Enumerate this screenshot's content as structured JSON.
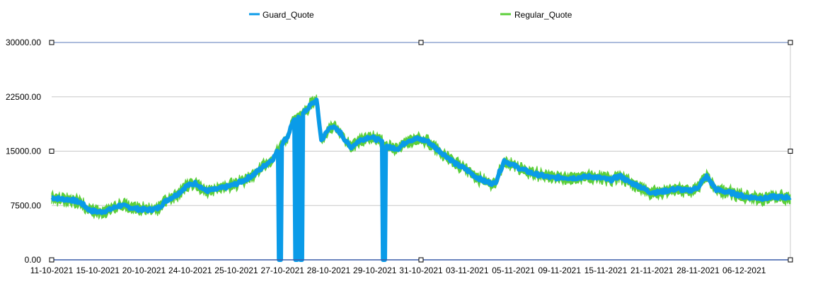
{
  "chart_data": {
    "type": "area",
    "title": "",
    "xlabel": "",
    "ylabel": "",
    "ylim": [
      0,
      30000
    ],
    "y_ticks": [
      "0.00",
      "7500.00",
      "15000.00",
      "22500.00",
      "30000.00"
    ],
    "y_tick_values": [
      0,
      7500,
      15000,
      22500,
      30000
    ],
    "x_tick_labels": [
      "11-10-2021",
      "15-10-2021",
      "20-10-2021",
      "24-10-2021",
      "25-10-2021",
      "27-10-2021",
      "28-10-2021",
      "29-10-2021",
      "31-10-2021",
      "03-11-2021",
      "05-11-2021",
      "09-11-2021",
      "15-11-2021",
      "21-11-2021",
      "28-11-2021",
      "06-12-2021"
    ],
    "grid": true,
    "legend_position": "top",
    "n_points": 360,
    "series": [
      {
        "name": "Guard_Quote",
        "color": "#0a9be8",
        "style": "thick-line",
        "anchors": [
          [
            0,
            8600
          ],
          [
            10,
            8400
          ],
          [
            20,
            8300
          ],
          [
            30,
            7900
          ],
          [
            40,
            6800
          ],
          [
            50,
            6600
          ],
          [
            60,
            6900
          ],
          [
            70,
            7500
          ],
          [
            80,
            7300
          ],
          [
            90,
            7000
          ],
          [
            100,
            6900
          ],
          [
            110,
            7100
          ],
          [
            120,
            8300
          ],
          [
            130,
            9000
          ],
          [
            140,
            10200
          ],
          [
            150,
            10600
          ],
          [
            160,
            9500
          ],
          [
            170,
            9700
          ],
          [
            180,
            10000
          ],
          [
            190,
            10400
          ],
          [
            200,
            11000
          ],
          [
            210,
            11800
          ],
          [
            220,
            12900
          ],
          [
            230,
            14000
          ],
          [
            240,
            16200
          ],
          [
            245,
            17000
          ],
          [
            250,
            19000
          ],
          [
            260,
            20000
          ],
          [
            270,
            21500
          ],
          [
            275,
            22000
          ],
          [
            280,
            16500
          ],
          [
            290,
            18500
          ],
          [
            300,
            17500
          ],
          [
            310,
            15500
          ],
          [
            320,
            16500
          ],
          [
            330,
            17000
          ],
          [
            340,
            16500
          ],
          [
            350,
            15500
          ],
          [
            360,
            15400
          ],
          [
            370,
            16500
          ],
          [
            380,
            16700
          ],
          [
            390,
            16400
          ],
          [
            400,
            15300
          ],
          [
            410,
            14300
          ],
          [
            420,
            13200
          ],
          [
            430,
            12500
          ],
          [
            440,
            11500
          ],
          [
            450,
            10800
          ],
          [
            460,
            10500
          ],
          [
            470,
            13700
          ],
          [
            480,
            13000
          ],
          [
            490,
            12400
          ],
          [
            500,
            11900
          ],
          [
            510,
            11600
          ],
          [
            520,
            11300
          ],
          [
            530,
            11400
          ],
          [
            540,
            11300
          ],
          [
            550,
            11400
          ],
          [
            560,
            11500
          ],
          [
            570,
            11300
          ],
          [
            580,
            11000
          ],
          [
            590,
            11600
          ],
          [
            600,
            10700
          ],
          [
            610,
            10200
          ],
          [
            620,
            9400
          ],
          [
            630,
            9300
          ],
          [
            640,
            9600
          ],
          [
            650,
            9800
          ],
          [
            660,
            9500
          ],
          [
            670,
            9900
          ],
          [
            680,
            11500
          ],
          [
            690,
            9700
          ],
          [
            700,
            9400
          ],
          [
            710,
            9100
          ],
          [
            720,
            8700
          ],
          [
            730,
            8600
          ],
          [
            740,
            8500
          ],
          [
            750,
            8700
          ],
          [
            760,
            8600
          ],
          [
            767,
            8700
          ]
        ],
        "dropouts": [
          [
            236,
            238
          ],
          [
            253,
            255
          ],
          [
            258,
            260
          ],
          [
            344,
            346
          ]
        ]
      },
      {
        "name": "Regular_Quote",
        "color": "#5ccf3a",
        "style": "jagged-band"
      }
    ]
  }
}
